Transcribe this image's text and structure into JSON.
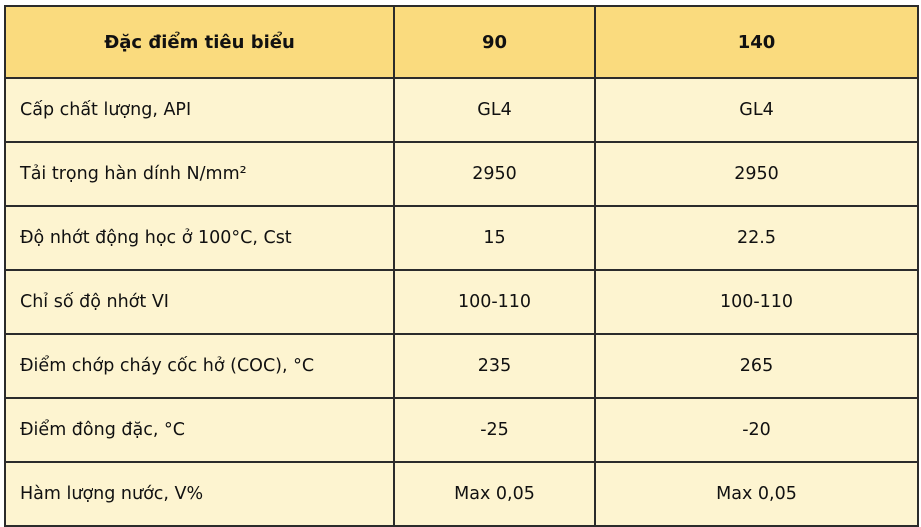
{
  "table": {
    "headers": [
      "Đặc điểm tiêu biểu",
      "90",
      "140"
    ],
    "rows": [
      [
        "Cấp chất lượng, API",
        "GL4",
        "GL4"
      ],
      [
        "Tải trọng hàn dính N/mm²",
        "2950",
        "2950"
      ],
      [
        "Độ nhớt động học ở 100°C, Cst",
        "15",
        "22.5"
      ],
      [
        "Chỉ số độ nhớt VI",
        "100-110",
        "100-110"
      ],
      [
        "Điểm chớp cháy cốc hở (COC), °C",
        "235",
        "265"
      ],
      [
        "Điểm đông đặc, °C",
        "-25",
        "-20"
      ],
      [
        "Hàm lượng nước, V%",
        "Max 0,05",
        "Max 0,05"
      ]
    ]
  },
  "colors": {
    "header_bg": "#fadb7e",
    "row_bg": "#fdf4d0",
    "border": "#2b2b2b"
  }
}
